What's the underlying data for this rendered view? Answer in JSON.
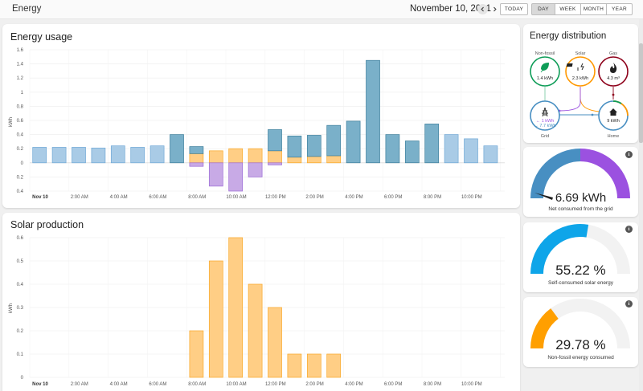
{
  "app": {
    "title": "Energy"
  },
  "header": {
    "date": "November 10, 2021",
    "buttons": [
      "TODAY",
      "DAY",
      "WEEK",
      "MONTH",
      "YEAR"
    ],
    "active_period": "DAY"
  },
  "energy_usage": {
    "title": "Energy usage",
    "chart_data": {
      "type": "bar",
      "ylabel": "kWh",
      "y_ticks_up": [
        "1.6",
        "1.4",
        "1.2",
        "1",
        "0.8",
        "0.6",
        "0.4",
        "0.2",
        "0"
      ],
      "y_ticks_down": [
        "0.2",
        "0.4"
      ],
      "ylim": [
        -0.4,
        1.6
      ],
      "x_tick_labels": [
        "Nov 10",
        "2:00 AM",
        "4:00 AM",
        "6:00 AM",
        "8:00 AM",
        "10:00 AM",
        "12:00 PM",
        "2:00 PM",
        "4:00 PM",
        "6:00 PM",
        "8:00 PM",
        "10:00 PM"
      ],
      "hours": [
        0,
        1,
        2,
        3,
        4,
        5,
        6,
        7,
        8,
        9,
        10,
        11,
        12,
        13,
        14,
        15,
        16,
        17,
        18,
        19,
        20,
        21,
        22,
        23
      ],
      "series": [
        {
          "key": "grid_low",
          "color": "#a9cbe6",
          "values": [
            0.22,
            0.22,
            0.22,
            0.21,
            0.24,
            0.22,
            0.24,
            0,
            0,
            0,
            0,
            0,
            0,
            0,
            0,
            0,
            0,
            0,
            0,
            0,
            0,
            0.4,
            0.34,
            0.24
          ]
        },
        {
          "key": "grid_high",
          "color": "#7ab0c9",
          "values": [
            0,
            0,
            0,
            0,
            0,
            0,
            0,
            0.4,
            0.1,
            0,
            0,
            0,
            0.3,
            0.3,
            0.3,
            0.43,
            0.59,
            1.45,
            0.4,
            0.31,
            0.55,
            0,
            0,
            0
          ]
        },
        {
          "key": "solar_consumed",
          "color": "#ffce85",
          "values": [
            0,
            0,
            0,
            0,
            0,
            0,
            0,
            0,
            0.13,
            0.17,
            0.2,
            0.2,
            0.17,
            0.08,
            0.09,
            0.1,
            0,
            0,
            0,
            0,
            0,
            0,
            0,
            0
          ]
        },
        {
          "key": "return_to_grid",
          "color": "#c8aae6",
          "values": [
            0,
            0,
            0,
            0,
            0,
            0,
            0,
            0,
            -0.05,
            -0.33,
            -0.4,
            -0.2,
            -0.03,
            0,
            0,
            0,
            0,
            0,
            0,
            0,
            0,
            0,
            0,
            0
          ]
        }
      ]
    }
  },
  "solar_production": {
    "title": "Solar production",
    "chart_data": {
      "type": "bar",
      "ylabel": "kWh",
      "y_ticks": [
        "0.6",
        "0.5",
        "0.4",
        "0.3",
        "0.2",
        "0.1",
        "0"
      ],
      "ylim": [
        0,
        0.6
      ],
      "x_tick_labels": [
        "Nov 10",
        "2:00 AM",
        "4:00 AM",
        "6:00 AM",
        "8:00 AM",
        "10:00 AM",
        "12:00 PM",
        "2:00 PM",
        "4:00 PM",
        "6:00 PM",
        "8:00 PM",
        "10:00 PM"
      ],
      "hours": [
        0,
        1,
        2,
        3,
        4,
        5,
        6,
        7,
        8,
        9,
        10,
        11,
        12,
        13,
        14,
        15,
        16,
        17,
        18,
        19,
        20,
        21,
        22,
        23
      ],
      "color": "#ffce85",
      "values": [
        0,
        0,
        0,
        0,
        0,
        0,
        0,
        0,
        0.2,
        0.5,
        0.6,
        0.4,
        0.3,
        0.1,
        0.1,
        0.1,
        0,
        0,
        0,
        0,
        0,
        0,
        0,
        0
      ]
    }
  },
  "distribution": {
    "title": "Energy distribution",
    "nonfossil": {
      "label": "Non-fossil",
      "value": "1.4 kWh",
      "color": "#0f9d58",
      "icon": "leaf-icon"
    },
    "solar": {
      "label": "Solar",
      "value": "2.3 kWh",
      "color": "#ff9800",
      "icon": "solar-power-icon"
    },
    "gas": {
      "label": "Gas",
      "value": "4.3 m³",
      "color": "#8e021b",
      "icon": "fire-icon"
    },
    "grid": {
      "label": "Grid",
      "value_out": "← 1 kWh",
      "value_in": "→ 7.7 kWh",
      "color": "#488fc2",
      "icon": "transmission-tower-icon"
    },
    "home": {
      "label": "Home",
      "value": "9 kWh",
      "color": "#212121",
      "icon": "home-icon"
    }
  },
  "gauges": [
    {
      "value": "6.69 kWh",
      "label": "Net consumed from the grid",
      "fill_fraction": 0.69,
      "colors": [
        "#488fc2",
        "#9b51e0"
      ]
    },
    {
      "value": "55.22 %",
      "label": "Self-consumed solar energy",
      "fill_fraction": 0.5522,
      "colors": [
        "#0ea5e9"
      ]
    },
    {
      "value": "29.78 %",
      "label": "Non-fossil energy consumed",
      "fill_fraction": 0.2978,
      "colors": [
        "#ff9f00"
      ]
    }
  ]
}
